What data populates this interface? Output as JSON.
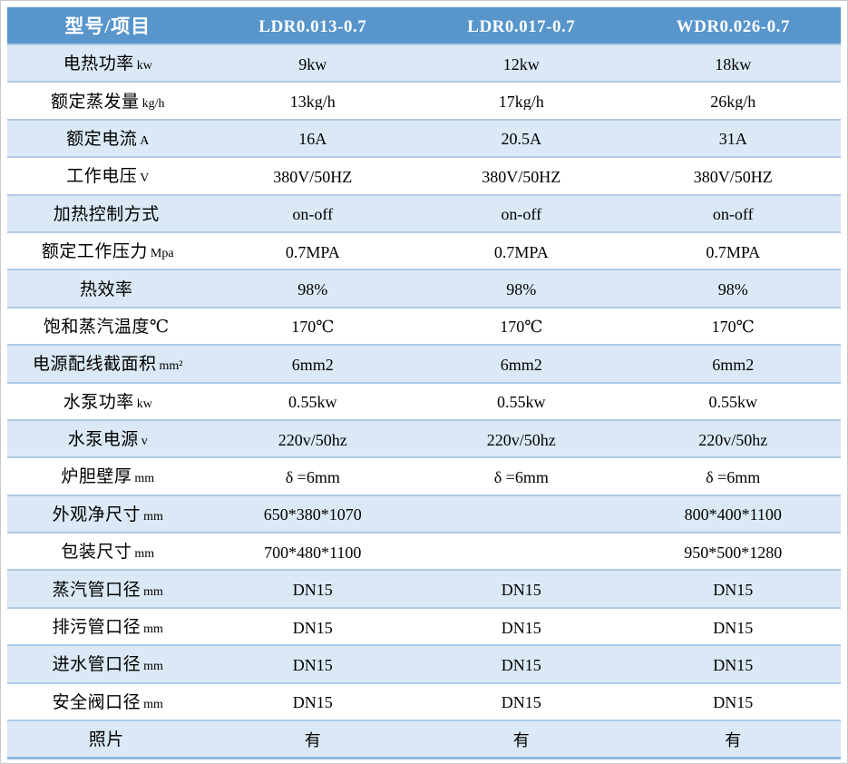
{
  "table": {
    "header": {
      "corner_label": "型号/项目",
      "models": [
        "LDR0.013-0.7",
        "LDR0.017-0.7",
        "WDR0.026-0.7"
      ]
    },
    "rows": [
      {
        "label": "电热功率",
        "unit": "kw",
        "values": [
          "9kw",
          "12kw",
          "18kw"
        ]
      },
      {
        "label": "额定蒸发量",
        "unit": "kg/h",
        "values": [
          "13kg/h",
          "17kg/h",
          "26kg/h"
        ]
      },
      {
        "label": "额定电流",
        "unit": "A",
        "values": [
          "16A",
          "20.5A",
          "31A"
        ]
      },
      {
        "label": "工作电压",
        "unit": "V",
        "values": [
          "380V/50HZ",
          "380V/50HZ",
          "380V/50HZ"
        ]
      },
      {
        "label": "加热控制方式",
        "unit": "",
        "values": [
          "on-off",
          "on-off",
          "on-off"
        ]
      },
      {
        "label": "额定工作压力",
        "unit": "Mpa",
        "values": [
          "0.7MPA",
          "0.7MPA",
          "0.7MPA"
        ]
      },
      {
        "label": "热效率",
        "unit": "",
        "values": [
          "98%",
          "98%",
          "98%"
        ]
      },
      {
        "label": "饱和蒸汽温度℃",
        "unit": "",
        "values": [
          "170℃",
          "170℃",
          "170℃"
        ]
      },
      {
        "label": "电源配线截面积",
        "unit": "mm²",
        "values": [
          "6mm2",
          "6mm2",
          "6mm2"
        ]
      },
      {
        "label": "水泵功率",
        "unit": "kw",
        "values": [
          "0.55kw",
          "0.55kw",
          "0.55kw"
        ]
      },
      {
        "label": "水泵电源",
        "unit": "v",
        "values": [
          "220v/50hz",
          "220v/50hz",
          "220v/50hz"
        ]
      },
      {
        "label": "炉胆壁厚",
        "unit": "mm",
        "values": [
          "δ =6mm",
          "δ =6mm",
          "δ =6mm"
        ]
      },
      {
        "label": "外观净尺寸",
        "unit": "mm",
        "values": [
          "650*380*1070",
          "",
          "800*400*1100"
        ]
      },
      {
        "label": "包装尺寸",
        "unit": "mm",
        "values": [
          "700*480*1100",
          "",
          "950*500*1280"
        ]
      },
      {
        "label": "蒸汽管口径",
        "unit": "mm",
        "values": [
          "DN15",
          "DN15",
          "DN15"
        ]
      },
      {
        "label": "排污管口径",
        "unit": "mm",
        "values": [
          "DN15",
          "DN15",
          "DN15"
        ]
      },
      {
        "label": "进水管口径",
        "unit": "mm",
        "values": [
          "DN15",
          "DN15",
          "DN15"
        ]
      },
      {
        "label": "安全阀口径",
        "unit": "mm",
        "values": [
          "DN15",
          "DN15",
          "DN15"
        ]
      },
      {
        "label": "照片",
        "unit": "",
        "values": [
          "有",
          "有",
          "有"
        ]
      }
    ],
    "colors": {
      "header_bg": "#5795cb",
      "header_text": "#ffffff",
      "row_alt_bg": "#dbe8f5",
      "row_bg": "#ffffff",
      "grid_line": "#aecbe8",
      "bottom_border": "#8fb8e0",
      "outer_border": "#c9c9c9",
      "body_text": "#000000"
    }
  }
}
